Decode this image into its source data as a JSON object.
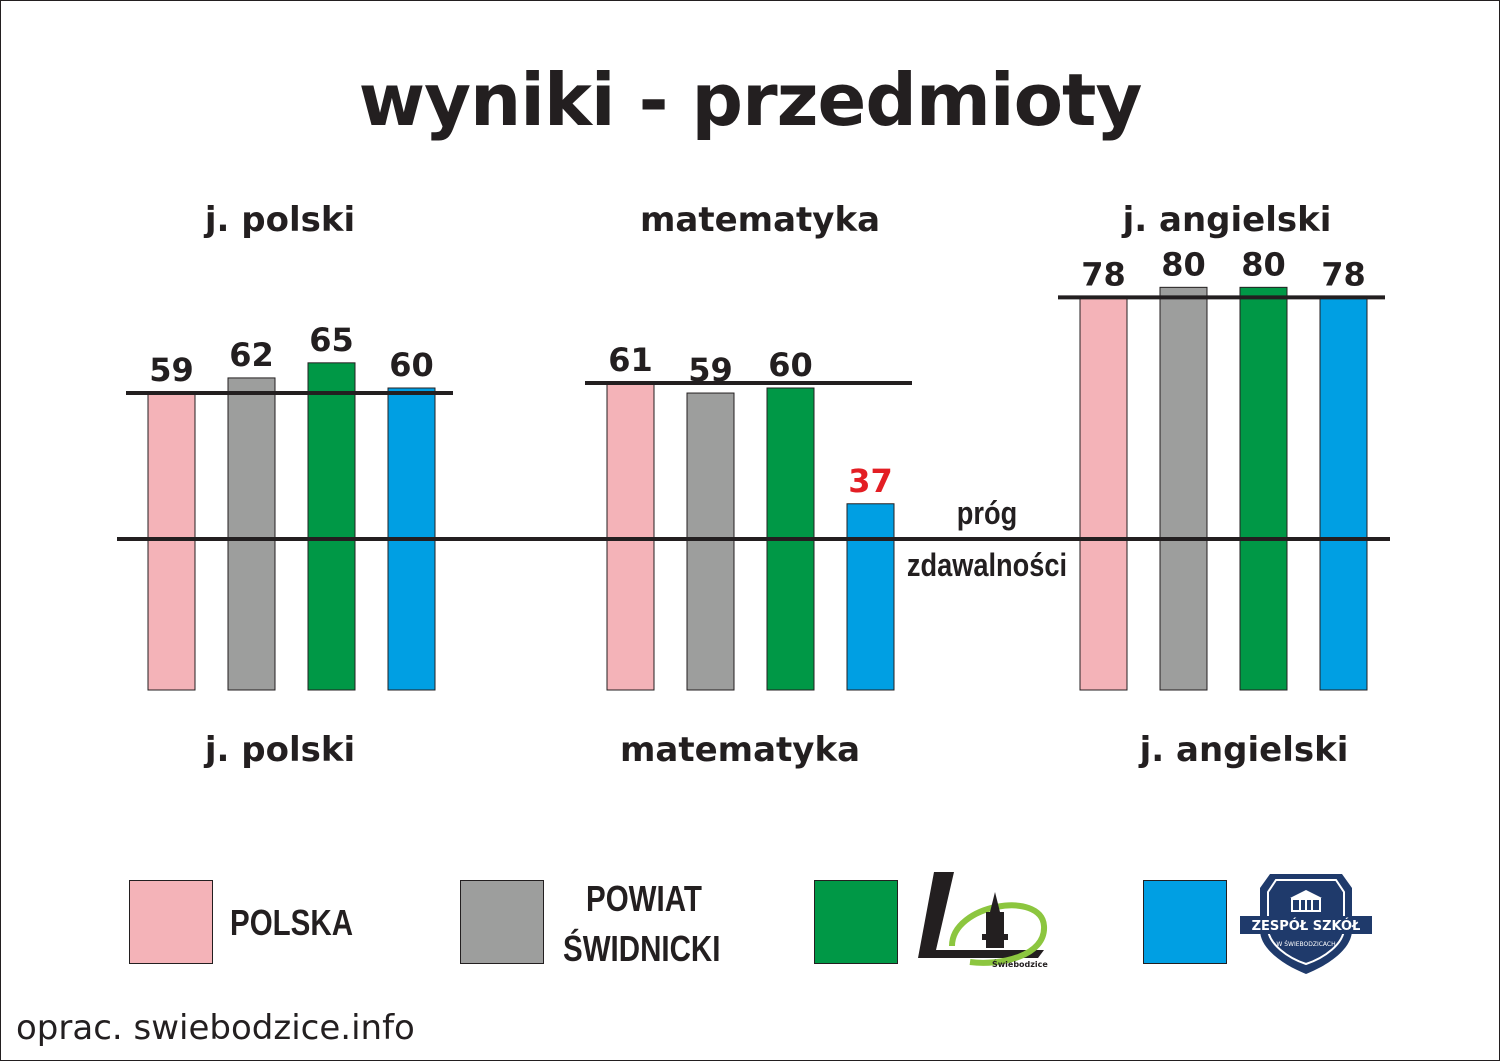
{
  "title": "wyniki - przedmioty",
  "colors": {
    "polska": "#f4b3b8",
    "powiat": "#9d9e9d",
    "lo": "#009846",
    "zs": "#009fe3",
    "highlight": "#e31e24",
    "text": "#231f20"
  },
  "legend": {
    "polska": "POLSKA",
    "powiat_line1": "POWIAT",
    "powiat_line2": "ŚWIDNICKI",
    "lo_logo_icon": "lo-swiebodzice-logo-icon",
    "zs_logo_icon": "zespol-szkol-logo-icon",
    "lo_logo_text": "Świebodzice",
    "zs_logo_text_main": "ZESPÓŁ SZKÓŁ",
    "zs_logo_text_sub": "W ŚWIEBODZICACH"
  },
  "threshold_label_line1": "próg",
  "threshold_label_line2": "zdawalności",
  "source": "oprac. swiebodzice.info",
  "chart_data": {
    "type": "bar",
    "title": "wyniki - przedmioty",
    "categories": [
      "j. polski",
      "matematyka",
      "j. angielski"
    ],
    "series": [
      {
        "name": "POLSKA",
        "values": [
          59,
          61,
          78
        ]
      },
      {
        "name": "POWIAT ŚWIDNICKI",
        "values": [
          62,
          59,
          80
        ]
      },
      {
        "name": "",
        "values": [
          65,
          60,
          80
        ]
      },
      {
        "name": "",
        "values": [
          60,
          37,
          78
        ]
      }
    ],
    "highlighted": [
      {
        "series": 3,
        "category": 1
      }
    ],
    "threshold": 30,
    "ylim": [
      0,
      80
    ],
    "grid": false,
    "legend_position": "bottom"
  }
}
